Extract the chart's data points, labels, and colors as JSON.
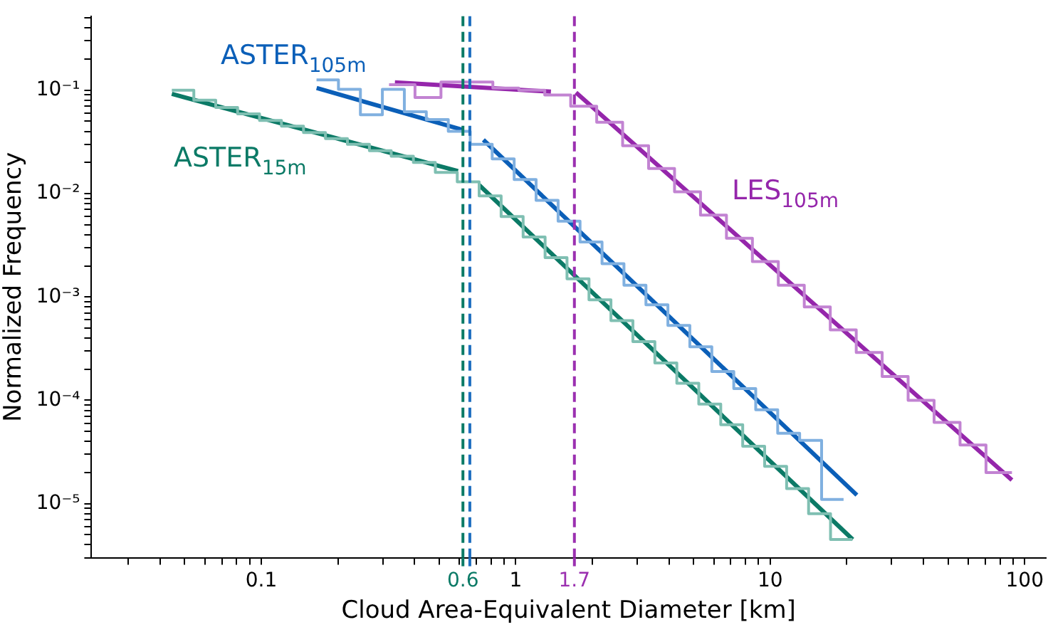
{
  "chart_data": {
    "type": "histogram",
    "xlabel": "Cloud Area-Equivalent Diameter [km]",
    "ylabel": "Normalized Frequency",
    "log": "xy",
    "grid": false,
    "legend": false,
    "xlim": [
      0.0215,
      121
    ],
    "ylim": [
      3e-06,
      0.52
    ],
    "xticks": [
      {
        "value": 0.03,
        "label": null
      },
      {
        "value": 0.04,
        "label": null
      },
      {
        "value": 0.05,
        "label": null
      },
      {
        "value": 0.06,
        "label": null
      },
      {
        "value": 0.07,
        "label": null
      },
      {
        "value": 0.08,
        "label": null
      },
      {
        "value": 0.09,
        "label": null
      },
      0.1,
      {
        "value": 0.2,
        "label": null
      },
      {
        "value": 0.3,
        "label": null
      },
      {
        "value": 0.4,
        "label": null
      },
      {
        "value": 0.5,
        "label": null
      },
      {
        "value": 0.6,
        "label": null
      },
      {
        "value": 0.7,
        "label": null
      },
      {
        "value": 0.8,
        "label": null
      },
      {
        "value": 0.9,
        "label": null
      },
      1,
      {
        "value": 2,
        "label": null
      },
      {
        "value": 3,
        "label": null
      },
      {
        "value": 4,
        "label": null
      },
      {
        "value": 5,
        "label": null
      },
      {
        "value": 6,
        "label": null
      },
      {
        "value": 7,
        "label": null
      },
      {
        "value": 8,
        "label": null
      },
      {
        "value": 9,
        "label": null
      },
      10,
      {
        "value": 20,
        "label": null
      },
      {
        "value": 30,
        "label": null
      },
      {
        "value": 40,
        "label": null
      },
      {
        "value": 50,
        "label": null
      },
      {
        "value": 60,
        "label": null
      },
      {
        "value": 70,
        "label": null
      },
      {
        "value": 80,
        "label": null
      },
      {
        "value": 90,
        "label": null
      },
      100
    ],
    "yticks": [
      {
        "value": 3e-06,
        "label": null
      },
      {
        "value": 4e-06,
        "label": null
      },
      {
        "value": 5e-06,
        "label": null
      },
      {
        "value": 6e-06,
        "label": null
      },
      {
        "value": 7e-06,
        "label": null
      },
      {
        "value": 8e-06,
        "label": null
      },
      {
        "value": 9e-06,
        "label": null
      },
      {
        "value": 1e-05,
        "label": "10⁻⁵"
      },
      {
        "value": 2e-05,
        "label": null
      },
      {
        "value": 3e-05,
        "label": null
      },
      {
        "value": 4e-05,
        "label": null
      },
      {
        "value": 5e-05,
        "label": null
      },
      {
        "value": 6e-05,
        "label": null
      },
      {
        "value": 7e-05,
        "label": null
      },
      {
        "value": 8e-05,
        "label": null
      },
      {
        "value": 9e-05,
        "label": null
      },
      {
        "value": 0.0001,
        "label": "10⁻⁴"
      },
      {
        "value": 0.0002,
        "label": null
      },
      {
        "value": 0.0003,
        "label": null
      },
      {
        "value": 0.0004,
        "label": null
      },
      {
        "value": 0.0005,
        "label": null
      },
      {
        "value": 0.0006,
        "label": null
      },
      {
        "value": 0.0007,
        "label": null
      },
      {
        "value": 0.0008,
        "label": null
      },
      {
        "value": 0.0009,
        "label": null
      },
      {
        "value": 0.001,
        "label": "10⁻³"
      },
      {
        "value": 0.002,
        "label": null
      },
      {
        "value": 0.003,
        "label": null
      },
      {
        "value": 0.004,
        "label": null
      },
      {
        "value": 0.005,
        "label": null
      },
      {
        "value": 0.006,
        "label": null
      },
      {
        "value": 0.007,
        "label": null
      },
      {
        "value": 0.008,
        "label": null
      },
      {
        "value": 0.009,
        "label": null
      },
      {
        "value": 0.01,
        "label": "10⁻²"
      },
      {
        "value": 0.02,
        "label": null
      },
      {
        "value": 0.03,
        "label": null
      },
      {
        "value": 0.04,
        "label": null
      },
      {
        "value": 0.05,
        "label": null
      },
      {
        "value": 0.06,
        "label": null
      },
      {
        "value": 0.07,
        "label": null
      },
      {
        "value": 0.08,
        "label": null
      },
      {
        "value": 0.09,
        "label": null
      },
      {
        "value": 0.1,
        "label": "10⁻¹"
      },
      {
        "value": 0.2,
        "label": null
      },
      {
        "value": 0.3,
        "label": null
      },
      {
        "value": 0.4,
        "label": null
      },
      {
        "value": 0.5,
        "label": null
      }
    ],
    "ref_lines": [
      {
        "axis": "x",
        "value": 0.62,
        "label": "0.6",
        "color": "#0b7a66",
        "line_style": "dashed"
      },
      {
        "axis": "x",
        "value": 0.66,
        "label": null,
        "color": "#1f6fc0",
        "line_style": "dashed"
      },
      {
        "axis": "x",
        "value": 1.7,
        "label": "1.7",
        "color": "#9b30b0",
        "line_style": "dashed"
      }
    ],
    "series": [
      {
        "type": "histogram",
        "color": "#7fbfb2",
        "bins": [
          0.0445,
          0.0543,
          0.0662,
          0.0807,
          0.0984,
          0.12,
          0.1465,
          0.1787,
          0.218,
          0.266,
          0.324,
          0.396,
          0.483,
          0.589,
          0.718,
          0.876,
          1.069,
          1.304,
          1.59,
          1.94,
          2.366,
          2.886,
          3.521,
          4.295,
          5.239,
          6.391,
          7.796,
          9.508,
          11.6,
          14.15,
          17.26,
          21.05
        ],
        "values": [
          0.1,
          0.08,
          0.068,
          0.059,
          0.051,
          0.045,
          0.039,
          0.034,
          0.03,
          0.026,
          0.023,
          0.02,
          0.016,
          0.013,
          0.0095,
          0.006,
          0.0038,
          0.0024,
          0.0015,
          0.00094,
          0.00059,
          0.00037,
          0.00023,
          0.000146,
          9.2e-05,
          5.8e-05,
          3.6e-05,
          2.3e-05,
          1.4e-05,
          8e-06,
          4.5e-06
        ]
      },
      {
        "type": "histogram",
        "color": "#80b0e0",
        "bins": [
          0.1648,
          0.201,
          0.2452,
          0.2991,
          0.3649,
          0.4451,
          0.543,
          0.6623,
          0.808,
          0.9856,
          1.202,
          1.467,
          1.789,
          2.183,
          2.662,
          3.248,
          3.962,
          4.832,
          5.895,
          7.191,
          8.77,
          10.7,
          13.05,
          15.92,
          19.42
        ],
        "values": [
          0.126,
          0.102,
          0.058,
          0.102,
          0.062,
          0.052,
          0.04,
          0.03,
          0.0217,
          0.0137,
          0.0086,
          0.0054,
          0.0034,
          0.0021,
          0.0013,
          0.00084,
          0.00053,
          0.00033,
          0.00019,
          0.00013,
          8.1e-05,
          4.8e-05,
          4.1e-05,
          1.1e-05
        ]
      },
      {
        "type": "histogram",
        "color": "#c283d2",
        "bins": [
          0.3177,
          0.4018,
          0.5082,
          0.6427,
          0.8128,
          1.028,
          1.3,
          1.644,
          2.08,
          2.63,
          3.327,
          4.207,
          5.321,
          6.73,
          8.511,
          10.76,
          13.61,
          17.22,
          21.78,
          27.54,
          34.83,
          44.06,
          55.72,
          70.47,
          89.13
        ],
        "values": [
          0.113,
          0.085,
          0.12,
          0.12,
          0.105,
          0.1,
          0.09,
          0.07,
          0.049,
          0.029,
          0.0175,
          0.0104,
          0.0062,
          0.0037,
          0.0022,
          0.0013,
          0.0008,
          0.00048,
          0.00029,
          0.00017,
          0.0001,
          6.1e-05,
          3.7e-05,
          2e-05
        ]
      },
      {
        "type": "line",
        "name": "ASTER$_{15m}$",
        "color": "#0b7a66",
        "x": [
          0.0445,
          0.593
        ],
        "values": [
          0.0922,
          0.0165
        ]
      },
      {
        "type": "line",
        "color": "#0b7a66",
        "x": [
          0.718,
          21.1
        ],
        "values": [
          0.0121,
          4.5e-06
        ]
      },
      {
        "type": "line",
        "name": "ASTER$_{105m}$",
        "color": "#0b5fb8",
        "x": [
          0.165,
          0.621
        ],
        "values": [
          0.105,
          0.0412
        ]
      },
      {
        "type": "line",
        "color": "#0b5fb8",
        "x": [
          0.746,
          21.9
        ],
        "values": [
          0.0331,
          1.21e-05
        ]
      },
      {
        "type": "line",
        "color": "#9526ab",
        "x": [
          0.335,
          1.375
        ],
        "values": [
          0.119,
          0.0969
        ]
      },
      {
        "type": "line",
        "name": "LES$_{105m}$",
        "color": "#9526ab",
        "x": [
          1.725,
          89.1
        ],
        "values": [
          0.095,
          1.69e-05
        ]
      }
    ]
  }
}
